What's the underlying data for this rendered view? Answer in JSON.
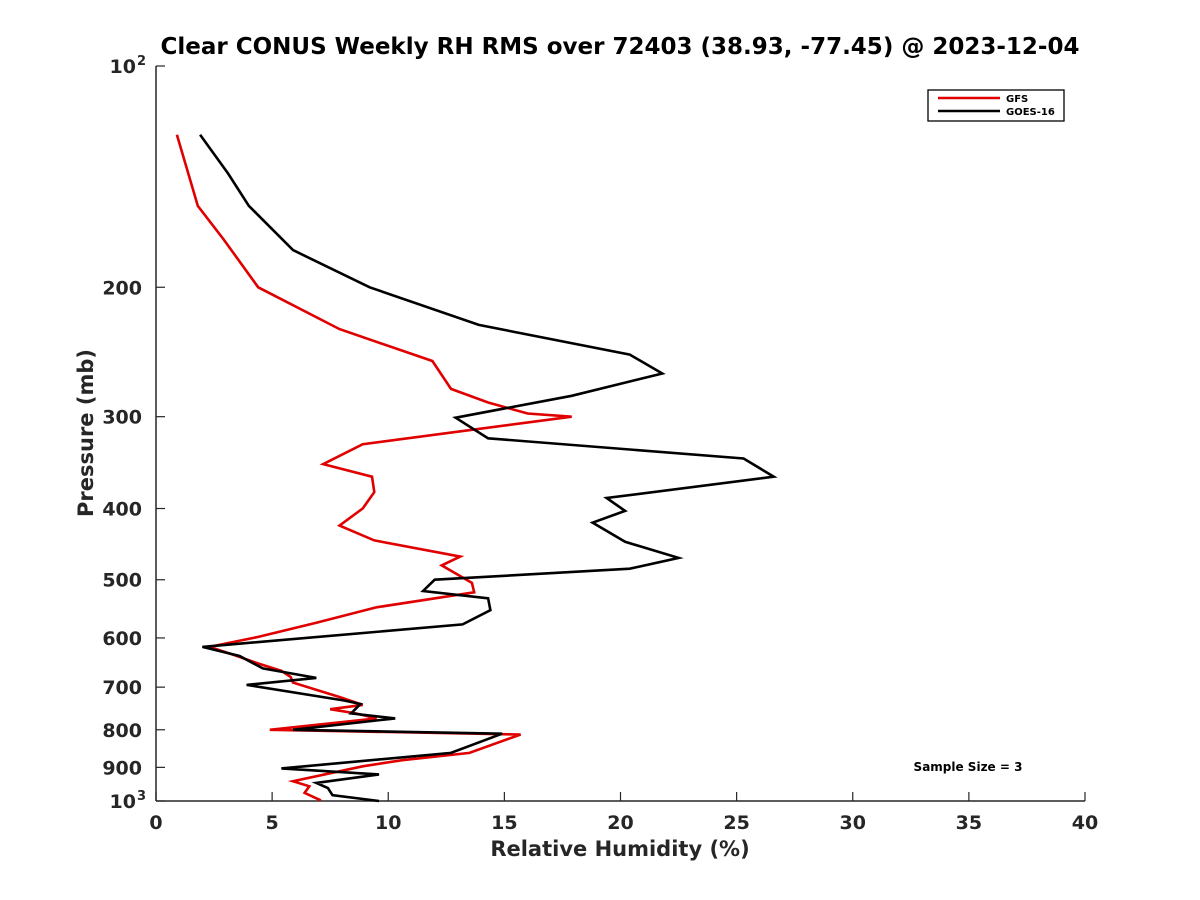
{
  "chart_data": {
    "type": "line",
    "title": "Clear CONUS Weekly RH RMS over 72403 (38.93, -77.45) @ 2023-12-04",
    "xlabel": "Relative Humidity (%)",
    "ylabel": "Pressure (mb)",
    "xlim": [
      0,
      40
    ],
    "ylim": [
      100,
      1000
    ],
    "y_scale": "log",
    "y_reversed": true,
    "x_ticks": [
      "0",
      "5",
      "10",
      "15",
      "20",
      "25",
      "30",
      "35",
      "40"
    ],
    "y_ticks": [
      {
        "value": 100,
        "label": "10",
        "sup": "2"
      },
      {
        "value": 200,
        "label": "200",
        "sup": ""
      },
      {
        "value": 300,
        "label": "300",
        "sup": ""
      },
      {
        "value": 400,
        "label": "400",
        "sup": ""
      },
      {
        "value": 500,
        "label": "500",
        "sup": ""
      },
      {
        "value": 600,
        "label": "600",
        "sup": ""
      },
      {
        "value": 700,
        "label": "700",
        "sup": ""
      },
      {
        "value": 800,
        "label": "800",
        "sup": ""
      },
      {
        "value": 900,
        "label": "900",
        "sup": ""
      },
      {
        "value": 1000,
        "label": "10",
        "sup": "3"
      }
    ],
    "grid": false,
    "legend_position": "top-right",
    "annotation": "Sample Size = 3",
    "series": [
      {
        "name": "GFS",
        "color": "#e00000",
        "points": [
          [
            0.9,
            124
          ],
          [
            1.8,
            155
          ],
          [
            2.9,
            172
          ],
          [
            4.4,
            200
          ],
          [
            7.9,
            228
          ],
          [
            11.9,
            252
          ],
          [
            12.7,
            275
          ],
          [
            14.3,
            287
          ],
          [
            16.0,
            297
          ],
          [
            17.9,
            300
          ],
          [
            8.9,
            327
          ],
          [
            7.2,
            348
          ],
          [
            9.3,
            362
          ],
          [
            9.4,
            380
          ],
          [
            8.9,
            400
          ],
          [
            7.9,
            422
          ],
          [
            9.4,
            442
          ],
          [
            13.1,
            465
          ],
          [
            12.3,
            478
          ],
          [
            13.6,
            505
          ],
          [
            13.7,
            520
          ],
          [
            9.5,
            545
          ],
          [
            6.9,
            572
          ],
          [
            4.4,
            598
          ],
          [
            2.3,
            617
          ],
          [
            3.3,
            632
          ],
          [
            4.4,
            650
          ],
          [
            5.4,
            665
          ],
          [
            5.8,
            678
          ],
          [
            5.9,
            690
          ],
          [
            7.9,
            722
          ],
          [
            8.9,
            740
          ],
          [
            7.5,
            750
          ],
          [
            8.6,
            760
          ],
          [
            9.5,
            772
          ],
          [
            4.9,
            800
          ],
          [
            15.7,
            812
          ],
          [
            13.5,
            860
          ],
          [
            10.6,
            880
          ],
          [
            8.9,
            897
          ],
          [
            5.9,
            940
          ],
          [
            6.6,
            955
          ],
          [
            6.4,
            975
          ],
          [
            7.1,
            998
          ]
        ]
      },
      {
        "name": "GOES-16",
        "color": "#000000",
        "points": [
          [
            1.9,
            124
          ],
          [
            3.1,
            140
          ],
          [
            4.0,
            155
          ],
          [
            5.9,
            178
          ],
          [
            9.2,
            200
          ],
          [
            13.9,
            225
          ],
          [
            20.4,
            247
          ],
          [
            21.8,
            262
          ],
          [
            17.9,
            281
          ],
          [
            12.9,
            301
          ],
          [
            14.3,
            321
          ],
          [
            25.3,
            342
          ],
          [
            26.6,
            362
          ],
          [
            19.4,
            387
          ],
          [
            20.2,
            403
          ],
          [
            18.8,
            418
          ],
          [
            20.2,
            444
          ],
          [
            22.5,
            467
          ],
          [
            20.4,
            483
          ],
          [
            12.0,
            500
          ],
          [
            11.5,
            518
          ],
          [
            14.3,
            530
          ],
          [
            14.4,
            550
          ],
          [
            13.2,
            575
          ],
          [
            2.0,
            617
          ],
          [
            3.6,
            635
          ],
          [
            4.6,
            660
          ],
          [
            6.9,
            680
          ],
          [
            3.9,
            695
          ],
          [
            8.1,
            730
          ],
          [
            8.8,
            738
          ],
          [
            8.4,
            760
          ],
          [
            10.3,
            772
          ],
          [
            5.9,
            800
          ],
          [
            14.9,
            810
          ],
          [
            12.7,
            860
          ],
          [
            5.4,
            903
          ],
          [
            9.6,
            920
          ],
          [
            6.9,
            945
          ],
          [
            7.4,
            960
          ],
          [
            7.6,
            982
          ],
          [
            9.6,
            1000
          ]
        ]
      }
    ]
  }
}
